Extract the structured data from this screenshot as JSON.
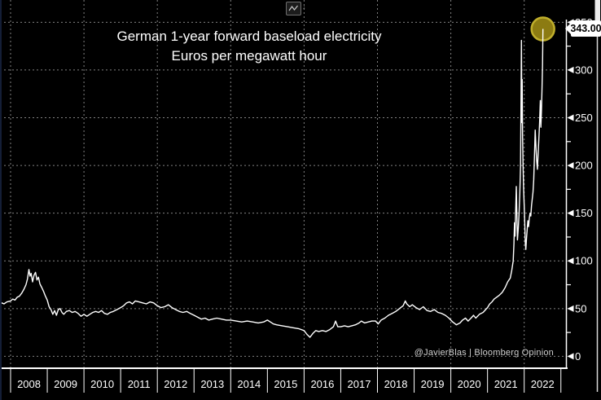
{
  "title": {
    "line1": "German 1-year forward baseload electricity",
    "line2": "Euros per megawatt hour"
  },
  "attribution": "@JavierBlas  |  Bloomberg Opinion",
  "callout": {
    "value": "343.00"
  },
  "toolbar": {
    "chart_tool_icon": "line-chart-icon",
    "dropdown_icon": "caret-down-icon"
  },
  "colors": {
    "background": "#000000",
    "line": "#ffffff",
    "grid": "#999999",
    "axis": "#ffffff",
    "tick_label": "#ffffff",
    "marker_fill": "#8c7b12",
    "marker_stroke": "#c0af2c",
    "callout_bg": "#ffffff",
    "callout_text": "#000000",
    "attribution_text": "#cfcfcf",
    "scrollbar": "#d8d8d8"
  },
  "chart_data": {
    "type": "line",
    "title": "German 1-year forward baseload electricity",
    "subtitle": "Euros per megawatt hour",
    "ylabel": "Euros per megawatt hour",
    "ylim": [
      0,
      350
    ],
    "xlim": [
      2007.7,
      2023.1
    ],
    "grid": "dotted",
    "legend": "none",
    "last_value": 343.0,
    "x_ticks": [
      "2008",
      "2009",
      "2010",
      "2011",
      "2012",
      "2013",
      "2014",
      "2015",
      "2016",
      "2017",
      "2018",
      "2019",
      "2020",
      "2021",
      "2022"
    ],
    "x_grid_years": [
      2008,
      2010,
      2012,
      2014,
      2016,
      2018,
      2020,
      2022
    ],
    "y_ticks_major": [
      0,
      50,
      100,
      150,
      200,
      250,
      300,
      350
    ],
    "y_ticks_minor": [
      25,
      75,
      125,
      175,
      225,
      275,
      325
    ],
    "series": [
      {
        "name": "German 1-year forward baseload electricity (EUR/MWh)",
        "points": [
          [
            2007.7,
            54
          ],
          [
            2007.76,
            56
          ],
          [
            2007.82,
            55
          ],
          [
            2007.9,
            57
          ],
          [
            2008.0,
            58
          ],
          [
            2008.06,
            60
          ],
          [
            2008.12,
            59
          ],
          [
            2008.18,
            62
          ],
          [
            2008.24,
            63
          ],
          [
            2008.3,
            66
          ],
          [
            2008.36,
            70
          ],
          [
            2008.42,
            75
          ],
          [
            2008.46,
            81
          ],
          [
            2008.5,
            91
          ],
          [
            2008.53,
            84
          ],
          [
            2008.56,
            87
          ],
          [
            2008.6,
            78
          ],
          [
            2008.64,
            85
          ],
          [
            2008.68,
            88
          ],
          [
            2008.72,
            80
          ],
          [
            2008.76,
            83
          ],
          [
            2008.8,
            76
          ],
          [
            2008.85,
            72
          ],
          [
            2008.9,
            68
          ],
          [
            2008.95,
            63
          ],
          [
            2009.0,
            59
          ],
          [
            2009.05,
            52
          ],
          [
            2009.1,
            49
          ],
          [
            2009.15,
            44
          ],
          [
            2009.2,
            48
          ],
          [
            2009.25,
            43
          ],
          [
            2009.3,
            49
          ],
          [
            2009.35,
            50
          ],
          [
            2009.4,
            46
          ],
          [
            2009.45,
            44
          ],
          [
            2009.52,
            47
          ],
          [
            2009.6,
            48
          ],
          [
            2009.68,
            46
          ],
          [
            2009.76,
            47
          ],
          [
            2009.84,
            45
          ],
          [
            2009.92,
            42
          ],
          [
            2010.0,
            44
          ],
          [
            2010.08,
            42
          ],
          [
            2010.16,
            44
          ],
          [
            2010.24,
            46
          ],
          [
            2010.32,
            47
          ],
          [
            2010.4,
            46
          ],
          [
            2010.48,
            48
          ],
          [
            2010.56,
            45
          ],
          [
            2010.64,
            44
          ],
          [
            2010.72,
            46
          ],
          [
            2010.8,
            47
          ],
          [
            2010.9,
            49
          ],
          [
            2011.0,
            51
          ],
          [
            2011.08,
            53
          ],
          [
            2011.16,
            56
          ],
          [
            2011.24,
            57
          ],
          [
            2011.32,
            55
          ],
          [
            2011.4,
            58
          ],
          [
            2011.5,
            57
          ],
          [
            2011.6,
            56
          ],
          [
            2011.7,
            55
          ],
          [
            2011.8,
            57
          ],
          [
            2011.9,
            56
          ],
          [
            2012.0,
            53
          ],
          [
            2012.1,
            51
          ],
          [
            2012.2,
            52
          ],
          [
            2012.3,
            54
          ],
          [
            2012.4,
            51
          ],
          [
            2012.5,
            49
          ],
          [
            2012.6,
            47
          ],
          [
            2012.7,
            46
          ],
          [
            2012.8,
            47
          ],
          [
            2012.9,
            45
          ],
          [
            2013.0,
            43
          ],
          [
            2013.1,
            41
          ],
          [
            2013.2,
            39
          ],
          [
            2013.3,
            40
          ],
          [
            2013.4,
            38
          ],
          [
            2013.5,
            39
          ],
          [
            2013.62,
            40
          ],
          [
            2013.75,
            39
          ],
          [
            2013.88,
            38
          ],
          [
            2014.0,
            38
          ],
          [
            2014.15,
            37
          ],
          [
            2014.3,
            36
          ],
          [
            2014.45,
            37
          ],
          [
            2014.6,
            36
          ],
          [
            2014.75,
            35
          ],
          [
            2014.9,
            36
          ],
          [
            2015.0,
            38
          ],
          [
            2015.08,
            36
          ],
          [
            2015.16,
            34
          ],
          [
            2015.25,
            33
          ],
          [
            2015.4,
            32
          ],
          [
            2015.55,
            31
          ],
          [
            2015.7,
            30
          ],
          [
            2015.85,
            29
          ],
          [
            2016.0,
            27
          ],
          [
            2016.08,
            23
          ],
          [
            2016.16,
            20
          ],
          [
            2016.24,
            24
          ],
          [
            2016.32,
            27
          ],
          [
            2016.4,
            26
          ],
          [
            2016.5,
            27
          ],
          [
            2016.6,
            26
          ],
          [
            2016.7,
            28
          ],
          [
            2016.8,
            31
          ],
          [
            2016.86,
            37
          ],
          [
            2016.92,
            31
          ],
          [
            2017.0,
            31
          ],
          [
            2017.1,
            32
          ],
          [
            2017.2,
            31
          ],
          [
            2017.3,
            32
          ],
          [
            2017.4,
            33
          ],
          [
            2017.5,
            35
          ],
          [
            2017.56,
            37
          ],
          [
            2017.65,
            35
          ],
          [
            2017.75,
            36
          ],
          [
            2017.85,
            37
          ],
          [
            2017.95,
            37
          ],
          [
            2018.02,
            34
          ],
          [
            2018.1,
            38
          ],
          [
            2018.2,
            40
          ],
          [
            2018.3,
            43
          ],
          [
            2018.4,
            45
          ],
          [
            2018.5,
            47
          ],
          [
            2018.6,
            50
          ],
          [
            2018.7,
            53
          ],
          [
            2018.76,
            58
          ],
          [
            2018.8,
            55
          ],
          [
            2018.88,
            52
          ],
          [
            2018.95,
            54
          ],
          [
            2019.05,
            51
          ],
          [
            2019.15,
            49
          ],
          [
            2019.25,
            52
          ],
          [
            2019.35,
            48
          ],
          [
            2019.45,
            47
          ],
          [
            2019.55,
            49
          ],
          [
            2019.65,
            46
          ],
          [
            2019.75,
            45
          ],
          [
            2019.85,
            43
          ],
          [
            2019.95,
            40
          ],
          [
            2020.05,
            36
          ],
          [
            2020.15,
            33
          ],
          [
            2020.25,
            35
          ],
          [
            2020.32,
            38
          ],
          [
            2020.4,
            40
          ],
          [
            2020.47,
            37
          ],
          [
            2020.55,
            40
          ],
          [
            2020.62,
            43
          ],
          [
            2020.68,
            40
          ],
          [
            2020.78,
            44
          ],
          [
            2020.88,
            46
          ],
          [
            2020.95,
            49
          ],
          [
            2021.0,
            51
          ],
          [
            2021.06,
            55
          ],
          [
            2021.12,
            57
          ],
          [
            2021.18,
            60
          ],
          [
            2021.25,
            62
          ],
          [
            2021.32,
            64
          ],
          [
            2021.4,
            67
          ],
          [
            2021.48,
            72
          ],
          [
            2021.55,
            78
          ],
          [
            2021.62,
            82
          ],
          [
            2021.66,
            90
          ],
          [
            2021.7,
            100
          ],
          [
            2021.72,
            118
          ],
          [
            2021.735,
            140
          ],
          [
            2021.75,
            126
          ],
          [
            2021.77,
            155
          ],
          [
            2021.785,
            178
          ],
          [
            2021.8,
            148
          ],
          [
            2021.815,
            122
          ],
          [
            2021.84,
            135
          ],
          [
            2021.86,
            150
          ],
          [
            2021.88,
            170
          ],
          [
            2021.9,
            200
          ],
          [
            2021.915,
            280
          ],
          [
            2021.925,
            331
          ],
          [
            2021.935,
            245
          ],
          [
            2021.945,
            290
          ],
          [
            2021.955,
            230
          ],
          [
            2021.97,
            200
          ],
          [
            2021.985,
            175
          ],
          [
            2022.0,
            158
          ],
          [
            2022.015,
            138
          ],
          [
            2022.03,
            118
          ],
          [
            2022.045,
            112
          ],
          [
            2022.06,
            122
          ],
          [
            2022.08,
            132
          ],
          [
            2022.1,
            142
          ],
          [
            2022.12,
            136
          ],
          [
            2022.14,
            145
          ],
          [
            2022.16,
            150
          ],
          [
            2022.18,
            147
          ],
          [
            2022.2,
            158
          ],
          [
            2022.22,
            165
          ],
          [
            2022.24,
            172
          ],
          [
            2022.26,
            185
          ],
          [
            2022.28,
            210
          ],
          [
            2022.3,
            237
          ],
          [
            2022.32,
            220
          ],
          [
            2022.34,
            205
          ],
          [
            2022.36,
            196
          ],
          [
            2022.38,
            212
          ],
          [
            2022.4,
            228
          ],
          [
            2022.42,
            245
          ],
          [
            2022.44,
            268
          ],
          [
            2022.455,
            240
          ],
          [
            2022.47,
            258
          ],
          [
            2022.485,
            278
          ],
          [
            2022.5,
            305
          ],
          [
            2022.51,
            343
          ]
        ]
      }
    ]
  }
}
